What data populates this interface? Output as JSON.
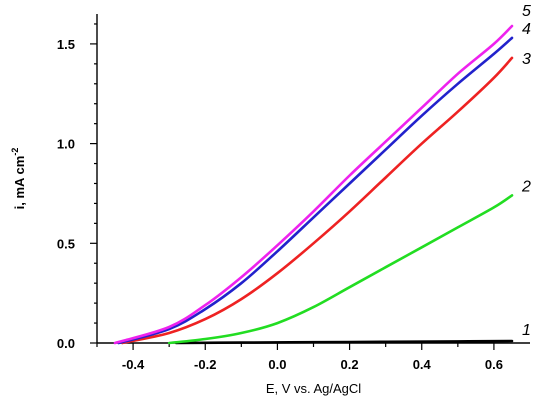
{
  "chart_data": {
    "type": "line",
    "title": "",
    "xlabel": "E, V vs. Ag/AgCl",
    "ylabel": "i, mA cm",
    "ylabel_superscript": "-2",
    "xlim": [
      -0.5,
      0.7
    ],
    "ylim": [
      0.0,
      1.65
    ],
    "xticks": [
      -0.4,
      -0.2,
      0.0,
      0.2,
      0.4,
      0.6
    ],
    "xtick_labels": [
      "-0.4",
      "-0.2",
      "0.0",
      "0.2",
      "0.4",
      "0.6"
    ],
    "yticks": [
      0.0,
      0.5,
      1.0,
      1.5
    ],
    "ytick_labels": [
      "0.0",
      "0.5",
      "1.0",
      "1.5"
    ],
    "grid": false,
    "legend": "none",
    "series": [
      {
        "name": "1",
        "color": "#000000",
        "x": [
          -0.28,
          -0.1,
          0.1,
          0.3,
          0.5,
          0.65
        ],
        "y": [
          0.0,
          0.002,
          0.004,
          0.006,
          0.008,
          0.01
        ]
      },
      {
        "name": "2",
        "color": "#22dd22",
        "x": [
          -0.3,
          -0.2,
          -0.1,
          0.0,
          0.1,
          0.2,
          0.3,
          0.4,
          0.5,
          0.6,
          0.65
        ],
        "y": [
          0.0,
          0.02,
          0.05,
          0.1,
          0.18,
          0.28,
          0.38,
          0.48,
          0.58,
          0.68,
          0.74
        ]
      },
      {
        "name": "3",
        "color": "#ee2222",
        "x": [
          -0.43,
          -0.3,
          -0.2,
          -0.1,
          0.0,
          0.1,
          0.2,
          0.3,
          0.4,
          0.5,
          0.6,
          0.65
        ],
        "y": [
          0.0,
          0.05,
          0.12,
          0.22,
          0.35,
          0.5,
          0.66,
          0.83,
          1.0,
          1.16,
          1.33,
          1.43
        ]
      },
      {
        "name": "4",
        "color": "#2222cc",
        "x": [
          -0.44,
          -0.3,
          -0.2,
          -0.1,
          0.0,
          0.1,
          0.2,
          0.3,
          0.4,
          0.5,
          0.6,
          0.65
        ],
        "y": [
          0.0,
          0.07,
          0.17,
          0.3,
          0.46,
          0.63,
          0.8,
          0.97,
          1.14,
          1.3,
          1.45,
          1.53
        ]
      },
      {
        "name": "5",
        "color": "#ee22ee",
        "x": [
          -0.45,
          -0.3,
          -0.2,
          -0.1,
          0.0,
          0.1,
          0.2,
          0.3,
          0.4,
          0.5,
          0.6,
          0.65
        ],
        "y": [
          0.0,
          0.08,
          0.19,
          0.33,
          0.49,
          0.66,
          0.84,
          1.01,
          1.18,
          1.35,
          1.5,
          1.59
        ]
      }
    ]
  }
}
